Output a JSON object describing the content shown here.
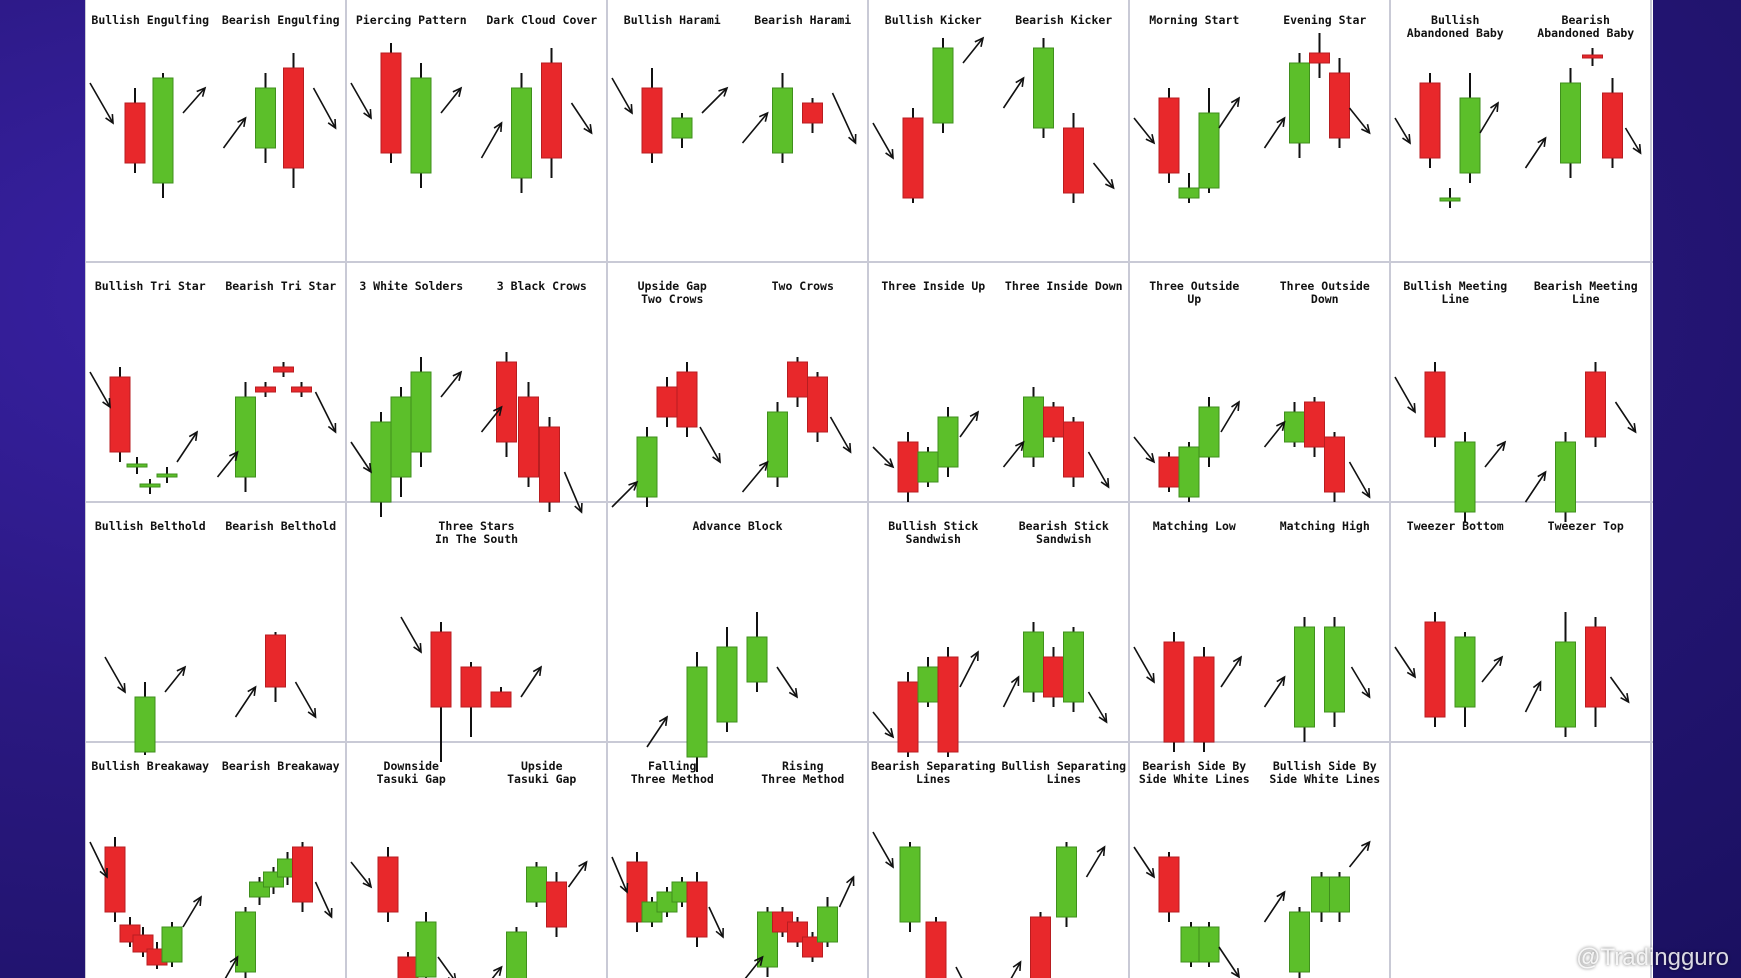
{
  "colors": {
    "bull": "#5cbf2a",
    "bear": "#e8282b",
    "wick": "#111111",
    "grid": "#c9cad6"
  },
  "watermark": "@Tradingguro",
  "cells": [
    [
      {
        "a": {
          "label": "Bullish Engulfing",
          "pattern": "bullish-engulfing"
        },
        "b": {
          "label": "Bearish Engulfing",
          "pattern": "bearish-engulfing"
        }
      },
      {
        "a": {
          "label": "Piercing Pattern",
          "pattern": "piercing-pattern"
        },
        "b": {
          "label": "Dark Cloud Cover",
          "pattern": "dark-cloud-cover"
        }
      },
      {
        "a": {
          "label": "Bullish Harami",
          "pattern": "bullish-harami"
        },
        "b": {
          "label": "Bearish Harami",
          "pattern": "bearish-harami"
        }
      },
      {
        "a": {
          "label": "Bullish Kicker",
          "pattern": "bullish-kicker"
        },
        "b": {
          "label": "Bearish Kicker",
          "pattern": "bearish-kicker"
        }
      },
      {
        "a": {
          "label": "Morning Start",
          "pattern": "morning-star"
        },
        "b": {
          "label": "Evening Star",
          "pattern": "evening-star"
        }
      },
      {
        "a": {
          "label": "Bullish\nAbandoned Baby",
          "pattern": "bullish-abandoned-baby"
        },
        "b": {
          "label": "Bearish\nAbandoned Baby",
          "pattern": "bearish-abandoned-baby"
        }
      }
    ],
    [
      {
        "a": {
          "label": "Bullish Tri Star",
          "pattern": "bullish-tri-star"
        },
        "b": {
          "label": "Bearish Tri Star",
          "pattern": "bearish-tri-star"
        }
      },
      {
        "a": {
          "label": "3 White Solders",
          "pattern": "three-white-soldiers"
        },
        "b": {
          "label": "3 Black Crows",
          "pattern": "three-black-crows"
        }
      },
      {
        "a": {
          "label": "Upside Gap\nTwo Crows",
          "pattern": "upside-gap-two-crows"
        },
        "b": {
          "label": "Two Crows",
          "pattern": "two-crows"
        }
      },
      {
        "a": {
          "label": "Three Inside Up",
          "pattern": "three-inside-up"
        },
        "b": {
          "label": "Three Inside Down",
          "pattern": "three-inside-down"
        }
      },
      {
        "a": {
          "label": "Three Outside\nUp",
          "pattern": "three-outside-up"
        },
        "b": {
          "label": "Three Outside\nDown",
          "pattern": "three-outside-down"
        }
      },
      {
        "a": {
          "label": "Bullish Meeting\nLine",
          "pattern": "bullish-meeting-line"
        },
        "b": {
          "label": "Bearish Meeting\nLine",
          "pattern": "bearish-meeting-line"
        }
      }
    ],
    [
      {
        "a": {
          "label": "Bullish Belthold",
          "pattern": "bullish-belthold"
        },
        "b": {
          "label": "Bearish Belthold",
          "pattern": "bearish-belthold"
        }
      },
      {
        "single": {
          "label": "Three Stars\nIn The South",
          "pattern": "three-stars-in-the-south"
        }
      },
      {
        "single": {
          "label": "Advance Block",
          "pattern": "advance-block"
        }
      },
      {
        "a": {
          "label": "Bullish Stick\nSandwish",
          "pattern": "bullish-stick-sandwich"
        },
        "b": {
          "label": "Bearish Stick\nSandwish",
          "pattern": "bearish-stick-sandwich"
        }
      },
      {
        "a": {
          "label": "Matching Low",
          "pattern": "matching-low"
        },
        "b": {
          "label": "Matching High",
          "pattern": "matching-high"
        }
      },
      {
        "a": {
          "label": "Tweezer Bottom",
          "pattern": "tweezer-bottom"
        },
        "b": {
          "label": "Tweezer Top",
          "pattern": "tweezer-top"
        }
      }
    ],
    [
      {
        "a": {
          "label": "Bullish Breakaway",
          "pattern": "bullish-breakaway"
        },
        "b": {
          "label": "Bearish Breakaway",
          "pattern": "bearish-breakaway"
        }
      },
      {
        "a": {
          "label": "Downside\nTasuki Gap",
          "pattern": "downside-tasuki-gap"
        },
        "b": {
          "label": "Upside\nTasuki Gap",
          "pattern": "upside-tasuki-gap"
        }
      },
      {
        "a": {
          "label": "Falling\nThree Method",
          "pattern": "falling-three-method"
        },
        "b": {
          "label": "Rising\nThree Method",
          "pattern": "rising-three-method"
        }
      },
      {
        "a": {
          "label": "Bearish Separating\nLines",
          "pattern": "bearish-separating-lines"
        },
        "b": {
          "label": "Bullish Separating\nLines",
          "pattern": "bullish-separating-lines"
        }
      },
      {
        "a": {
          "label": "Bearish Side By\nSide White Lines",
          "pattern": "bearish-side-by-side-white-lines"
        },
        "b": {
          "label": "Bullish Side By\nSide White Lines",
          "pattern": "bullish-side-by-side-white-lines"
        }
      },
      null
    ]
  ]
}
